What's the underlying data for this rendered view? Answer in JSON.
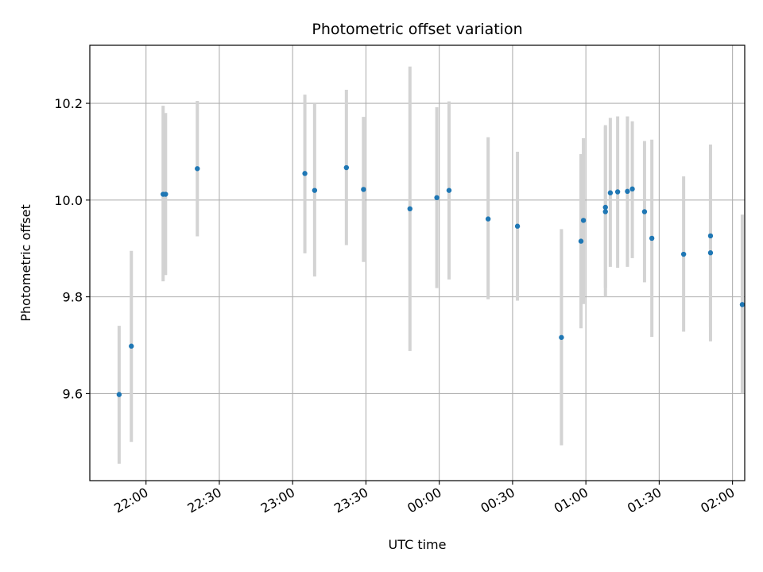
{
  "chart_data": {
    "type": "scatter",
    "title": "Photometric offset variation",
    "xlabel": "UTC time",
    "ylabel": "Photometric offset",
    "grid": true,
    "x_is_time": true,
    "xlim": [
      "21:37",
      "02:05"
    ],
    "ylim": [
      9.42,
      10.32
    ],
    "x_ticks": [
      "22:00",
      "22:30",
      "23:00",
      "23:30",
      "00:00",
      "00:30",
      "01:00",
      "01:30",
      "02:00"
    ],
    "y_ticks": [
      9.6,
      9.8,
      10.0,
      10.2
    ],
    "colors": {
      "point": "#1f77b4",
      "errorbar": "#d3d3d3",
      "grid": "#b0b0b0"
    },
    "points": [
      {
        "t": "21:49",
        "y": 9.598,
        "err_lo": 9.455,
        "err_hi": 9.74
      },
      {
        "t": "21:54",
        "y": 9.698,
        "err_lo": 9.5,
        "err_hi": 9.895
      },
      {
        "t": "22:07",
        "y": 10.012,
        "err_lo": 9.832,
        "err_hi": 10.195
      },
      {
        "t": "22:08",
        "y": 10.012,
        "err_lo": 9.845,
        "err_hi": 10.18
      },
      {
        "t": "22:21",
        "y": 10.065,
        "err_lo": 9.925,
        "err_hi": 10.205
      },
      {
        "t": "23:05",
        "y": 10.055,
        "err_lo": 9.89,
        "err_hi": 10.218
      },
      {
        "t": "23:09",
        "y": 10.02,
        "err_lo": 9.842,
        "err_hi": 10.2
      },
      {
        "t": "23:22",
        "y": 10.067,
        "err_lo": 9.907,
        "err_hi": 10.228
      },
      {
        "t": "23:29",
        "y": 10.022,
        "err_lo": 9.872,
        "err_hi": 10.172
      },
      {
        "t": "23:48",
        "y": 9.982,
        "err_lo": 9.688,
        "err_hi": 10.276
      },
      {
        "t": "23:59",
        "y": 10.005,
        "err_lo": 9.818,
        "err_hi": 10.192
      },
      {
        "t": "00:04",
        "y": 10.02,
        "err_lo": 9.836,
        "err_hi": 10.204
      },
      {
        "t": "00:20",
        "y": 9.961,
        "err_lo": 9.795,
        "err_hi": 10.13
      },
      {
        "t": "00:32",
        "y": 9.946,
        "err_lo": 9.792,
        "err_hi": 10.1
      },
      {
        "t": "00:50",
        "y": 9.716,
        "err_lo": 9.493,
        "err_hi": 9.94
      },
      {
        "t": "00:58",
        "y": 9.915,
        "err_lo": 9.735,
        "err_hi": 10.095
      },
      {
        "t": "00:59",
        "y": 9.958,
        "err_lo": 9.785,
        "err_hi": 10.128
      },
      {
        "t": "01:08",
        "y": 9.976,
        "err_lo": 9.8,
        "err_hi": 10.152
      },
      {
        "t": "01:08",
        "y": 9.985,
        "err_lo": 9.818,
        "err_hi": 10.155
      },
      {
        "t": "01:10",
        "y": 10.015,
        "err_lo": 9.862,
        "err_hi": 10.17
      },
      {
        "t": "01:13",
        "y": 10.017,
        "err_lo": 9.86,
        "err_hi": 10.173
      },
      {
        "t": "01:17",
        "y": 10.018,
        "err_lo": 9.862,
        "err_hi": 10.173
      },
      {
        "t": "01:19",
        "y": 10.023,
        "err_lo": 9.88,
        "err_hi": 10.163
      },
      {
        "t": "01:24",
        "y": 9.976,
        "err_lo": 9.83,
        "err_hi": 10.122
      },
      {
        "t": "01:27",
        "y": 9.921,
        "err_lo": 9.717,
        "err_hi": 10.125
      },
      {
        "t": "01:40",
        "y": 9.888,
        "err_lo": 9.728,
        "err_hi": 10.049
      },
      {
        "t": "01:51",
        "y": 9.891,
        "err_lo": 9.708,
        "err_hi": 10.075
      },
      {
        "t": "01:51",
        "y": 9.926,
        "err_lo": 9.738,
        "err_hi": 10.115
      },
      {
        "t": "02:04",
        "y": 9.784,
        "err_lo": 9.6,
        "err_hi": 9.97
      }
    ]
  }
}
